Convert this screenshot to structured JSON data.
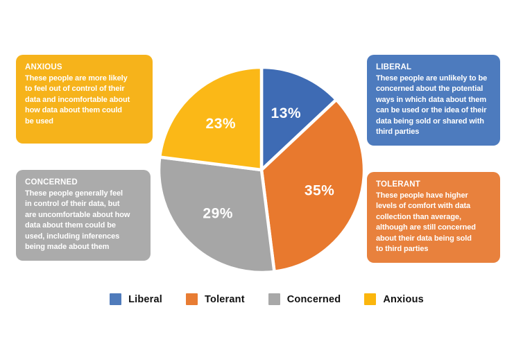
{
  "chart_data": {
    "type": "pie",
    "categories": [
      "Liberal",
      "Tolerant",
      "Concerned",
      "Anxious"
    ],
    "values": [
      13,
      35,
      29,
      23
    ],
    "labels": [
      "13%",
      "35%",
      "29%",
      "23%"
    ],
    "colors": [
      "#3E6BB4",
      "#E8792E",
      "#A6A6A6",
      "#FBB817"
    ],
    "label_color": "#ffffff",
    "start_angle_deg": 0,
    "direction": "clockwise",
    "separator_color": "#ffffff"
  },
  "boxes": [
    {
      "id": "anxious",
      "title": "ANXIOUS",
      "body": "These people are more likely\nto feel out of control of their\ndata and incomfortable about\nhow data about them could\nbe used",
      "color": "#F6B31B"
    },
    {
      "id": "concerned",
      "title": "CONCERNED",
      "body": "These people generally feel\nin control of their data, but\nare uncomfortable about how\ndata about them could be\nused, including inferences\nbeing made about them",
      "color": "#ABABAB"
    },
    {
      "id": "liberal",
      "title": "LIBERAL",
      "body": "These people are unlikely to be\nconcerned about the potential\nways in which data about them\ncan be used or the idea of their\ndata being sold or shared with\nthird parties",
      "color": "#4D7BBE"
    },
    {
      "id": "tolerant",
      "title": "TOLERANT",
      "body": "These people have higher\nlevels of comfort with data\ncollection than average,\nalthough are still concerned\nabout their data being sold\nto third parties",
      "color": "#E8813D"
    }
  ],
  "legend": [
    {
      "label": "Liberal",
      "color": "#4F7BBB"
    },
    {
      "label": "Tolerant",
      "color": "#E87C33"
    },
    {
      "label": "Concerned",
      "color": "#A8A8A8"
    },
    {
      "label": "Anxious",
      "color": "#FBB60D"
    }
  ]
}
